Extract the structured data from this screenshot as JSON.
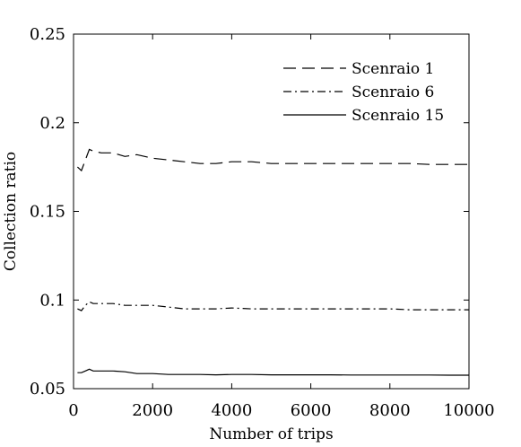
{
  "chart_data": {
    "type": "line",
    "title": "",
    "xlabel": "Number of trips",
    "ylabel": "Collection ratio",
    "xlim": [
      0,
      10000
    ],
    "ylim": [
      0.05,
      0.25
    ],
    "x_ticks": [
      0,
      2000,
      4000,
      6000,
      8000,
      10000
    ],
    "x_tick_labels": [
      "0",
      "2000",
      "4000",
      "6000",
      "8000",
      "10000"
    ],
    "y_ticks": [
      0.05,
      0.1,
      0.15,
      0.2,
      0.25
    ],
    "y_tick_labels": [
      "0.05",
      "0.1",
      "0.15",
      "0.2",
      "0.25"
    ],
    "grid": false,
    "legend_position": "top-right",
    "series": [
      {
        "name": "Scenraio 1",
        "line_style": "dashed",
        "color": "#000000",
        "x": [
          100,
          200,
          300,
          400,
          500,
          700,
          1000,
          1300,
          1600,
          2000,
          2400,
          2800,
          3200,
          3600,
          4000,
          4500,
          5000,
          5500,
          6000,
          6500,
          7000,
          7500,
          8000,
          8500,
          9000,
          9500,
          10000
        ],
        "y": [
          0.175,
          0.173,
          0.179,
          0.185,
          0.184,
          0.183,
          0.183,
          0.181,
          0.182,
          0.18,
          0.179,
          0.178,
          0.177,
          0.177,
          0.178,
          0.178,
          0.177,
          0.177,
          0.177,
          0.177,
          0.177,
          0.177,
          0.177,
          0.177,
          0.1765,
          0.1765,
          0.1765
        ]
      },
      {
        "name": "Scenraio 6",
        "line_style": "dash-dot",
        "color": "#000000",
        "x": [
          100,
          200,
          300,
          400,
          500,
          700,
          1000,
          1300,
          1600,
          2000,
          2400,
          2800,
          3200,
          3600,
          4000,
          4500,
          5000,
          5500,
          6000,
          6500,
          7000,
          7500,
          8000,
          8500,
          9000,
          9500,
          10000
        ],
        "y": [
          0.095,
          0.094,
          0.097,
          0.099,
          0.098,
          0.098,
          0.098,
          0.097,
          0.097,
          0.097,
          0.096,
          0.095,
          0.095,
          0.095,
          0.0955,
          0.095,
          0.095,
          0.095,
          0.095,
          0.095,
          0.095,
          0.095,
          0.095,
          0.0945,
          0.0945,
          0.0945,
          0.0945
        ]
      },
      {
        "name": "Scenraio 15",
        "line_style": "solid",
        "color": "#000000",
        "x": [
          100,
          200,
          300,
          400,
          500,
          700,
          1000,
          1300,
          1600,
          2000,
          2400,
          2800,
          3200,
          3600,
          4000,
          4500,
          5000,
          5500,
          6000,
          6500,
          7000,
          7500,
          8000,
          8500,
          9000,
          9500,
          10000
        ],
        "y": [
          0.059,
          0.059,
          0.06,
          0.061,
          0.06,
          0.06,
          0.06,
          0.0595,
          0.0585,
          0.0585,
          0.058,
          0.058,
          0.058,
          0.0578,
          0.058,
          0.058,
          0.0578,
          0.0578,
          0.0578,
          0.0578,
          0.0577,
          0.0577,
          0.0577,
          0.0577,
          0.0577,
          0.0576,
          0.0576
        ]
      }
    ]
  }
}
